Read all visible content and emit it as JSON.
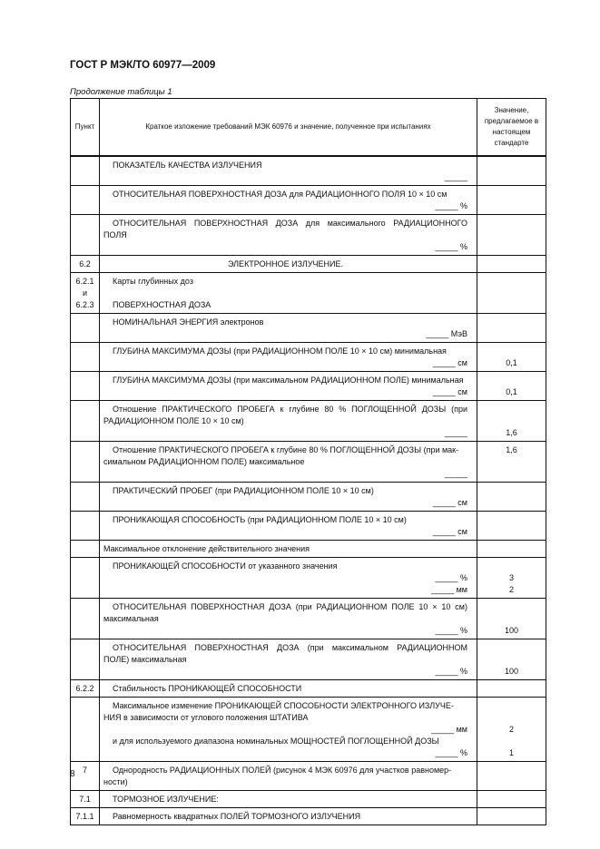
{
  "header": {
    "title": "ГОСТ Р МЭК/ТО 60977—2009",
    "caption": "Продолжение таблицы 1"
  },
  "table": {
    "columns": [
      "Пункт",
      "Краткое изложение требований МЭК 60976 и значение, полученное при испытаниях",
      "Значение, предлагаемое в настоящем стандарте"
    ],
    "rows": [
      {
        "punkt": [],
        "lines": [
          {
            "t": "ПОКАЗАТЕЛЬ КАЧЕСТВА ИЗЛУЧЕНИЯ",
            "k": "p"
          },
          {
            "t": "_____",
            "k": "r"
          }
        ]
      },
      {
        "punkt": [],
        "lines": [
          {
            "t": "ОТНОСИТЕЛЬНАЯ ПОВЕРХНОСТНАЯ ДОЗА для РАДИАЦИОННОГО ПОЛЯ 10 × 10 см",
            "k": "p"
          },
          {
            "t": "_____ %",
            "k": "r"
          }
        ]
      },
      {
        "punkt": [],
        "lines": [
          {
            "t": "ОТНОСИТЕЛЬНАЯ ПОВЕРХНОСТНАЯ ДОЗА для максимального РАДИАЦИОННОГО",
            "k": "pj"
          },
          {
            "t": "ПОЛЯ",
            "k": "c"
          },
          {
            "t": "_____ %",
            "k": "r"
          }
        ]
      },
      {
        "punkt": [
          "6.2"
        ],
        "lines": [
          {
            "t": "ЭЛЕКТРОННОЕ ИЗЛУЧЕНИЕ.",
            "k": "ctr"
          }
        ]
      },
      {
        "punkt": [
          "6.2.1",
          "и",
          "6.2.3"
        ],
        "lines": [
          {
            "t": "Карты глубинных доз",
            "k": "p"
          },
          {
            "t": "",
            "k": "c"
          },
          {
            "t": "ПОВЕРХНОСТНАЯ ДОЗА",
            "k": "p"
          }
        ]
      },
      {
        "punkt": [],
        "lines": [
          {
            "t": "НОМИНАЛЬНАЯ ЭНЕРГИЯ электронов",
            "k": "p"
          },
          {
            "t": "_____ МэВ",
            "k": "r"
          }
        ]
      },
      {
        "punkt": [],
        "lines": [
          {
            "t": "ГЛУБИНА МАКСИМУМА ДОЗЫ (при РАДИАЦИОННОМ ПОЛЕ 10 × 10 см) минимальная",
            "k": "p"
          },
          {
            "t": "_____ см",
            "k": "r",
            "v": "0,1"
          }
        ]
      },
      {
        "punkt": [],
        "lines": [
          {
            "t": "ГЛУБИНА МАКСИМУМА ДОЗЫ (при максимальном РАДИАЦИОННОМ ПОЛЕ) минимальная",
            "k": "p"
          },
          {
            "t": "_____ см",
            "k": "r",
            "v": "0,1"
          }
        ]
      },
      {
        "punkt": [],
        "lines": [
          {
            "t": "Отношение ПРАКТИЧЕСКОГО ПРОБЕГА к глубине 80 % ПОГЛОЩЕННОЙ ДОЗЫ (при",
            "k": "pj"
          },
          {
            "t": "РАДИАЦИОННОМ ПОЛЕ 10 × 10 см)",
            "k": "c"
          },
          {
            "t": "_____",
            "k": "r",
            "v": "1,6"
          }
        ]
      },
      {
        "punkt": [],
        "lines": [
          {
            "t": "Отношение ПРАКТИЧЕСКОГО ПРОБЕГА к глубине 80 % ПОГЛОЩЕННОЙ ДОЗЫ (при мак-",
            "k": "p",
            "v": "1,6"
          },
          {
            "t": "симальном РАДИАЦИОННОМ ПОЛЕ) максимальное",
            "k": "c"
          },
          {
            "t": "_____",
            "k": "r"
          }
        ]
      },
      {
        "punkt": [],
        "lines": [
          {
            "t": "ПРАКТИЧЕСКИЙ ПРОБЕГ (при РАДИАЦИОННОМ ПОЛЕ 10 × 10 см)",
            "k": "p"
          },
          {
            "t": "_____ см",
            "k": "r"
          }
        ]
      },
      {
        "punkt": [],
        "lines": [
          {
            "t": "ПРОНИКАЮЩАЯ СПОСОБНОСТЬ (при РАДИАЦИОННОМ ПОЛЕ 10 × 10 см)",
            "k": "p"
          },
          {
            "t": "_____ см",
            "k": "r"
          }
        ]
      },
      {
        "punkt": [],
        "lines": [
          {
            "t": "Максимальное отклонение действительного значения",
            "k": "c"
          }
        ]
      },
      {
        "punkt": [],
        "lines": [
          {
            "t": "ПРОНИКАЮЩЕЙ СПОСОБНОСТИ от указанного значения",
            "k": "p"
          },
          {
            "t": "_____ %",
            "k": "r",
            "v": "3"
          },
          {
            "t": "_____ мм",
            "k": "r",
            "v": "2"
          }
        ]
      },
      {
        "punkt": [],
        "lines": [
          {
            "t": "ОТНОСИТЕЛЬНАЯ ПОВЕРХНОСТНАЯ ДОЗА (при РАДИАЦИОННОМ ПОЛЕ 10 × 10 см)",
            "k": "pj"
          },
          {
            "t": "максимальная",
            "k": "c"
          },
          {
            "t": "_____ %",
            "k": "r",
            "v": "100"
          }
        ]
      },
      {
        "punkt": [],
        "lines": [
          {
            "t": "ОТНОСИТЕЛЬНАЯ ПОВЕРХНОСТНАЯ ДОЗА (при максимальном РАДИАЦИОННОМ",
            "k": "pj"
          },
          {
            "t": "ПОЛЕ) максимальная",
            "k": "c"
          },
          {
            "t": "_____ %",
            "k": "r",
            "v": "100"
          }
        ]
      },
      {
        "punkt": [
          "6.2.2"
        ],
        "lines": [
          {
            "t": "Стабильность ПРОНИКАЮЩЕЙ СПОСОБНОСТИ",
            "k": "p"
          }
        ]
      },
      {
        "punkt": [],
        "lines": [
          {
            "t": "Максимальное изменение ПРОНИКАЮЩЕЙ СПОСОБНОСТИ ЭЛЕКТРОННОГО ИЗЛУЧЕ-",
            "k": "p"
          },
          {
            "t": "НИЯ в зависимости от углового положения ШТАТИВА",
            "k": "c"
          },
          {
            "t": "_____ мм",
            "k": "r",
            "v": "2"
          },
          {
            "t": "и для используемого диапазона номинальных МОЩНОСТЕЙ ПОГЛОЩЕННОЙ ДОЗЫ",
            "k": "p"
          },
          {
            "t": "_____ %",
            "k": "r",
            "v": "1"
          }
        ]
      },
      {
        "punkt": [
          "7"
        ],
        "lines": [
          {
            "t": "Однородность РАДИАЦИОННЫХ ПОЛЕЙ (рисунок 4 МЭК 60976 для участков равномер-",
            "k": "p"
          },
          {
            "t": "ности)",
            "k": "c"
          }
        ]
      },
      {
        "punkt": [
          "7.1"
        ],
        "lines": [
          {
            "t": "ТОРМОЗНОЕ ИЗЛУЧЕНИЕ:",
            "k": "p"
          }
        ]
      },
      {
        "punkt": [
          "7.1.1"
        ],
        "lines": [
          {
            "t": "Равномерность квадратных ПОЛЕЙ ТОРМОЗНОГО ИЗЛУЧЕНИЯ",
            "k": "p"
          }
        ]
      }
    ]
  },
  "footer": {
    "page_number": "8"
  }
}
